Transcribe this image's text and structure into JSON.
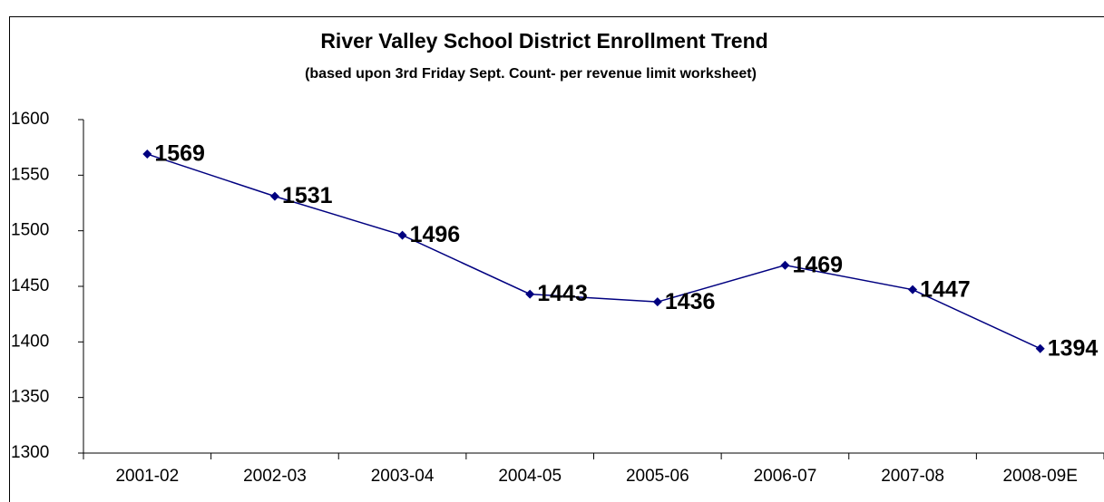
{
  "chart_data": {
    "type": "line",
    "title": "River Valley School District  Enrollment Trend",
    "subtitle": "(based upon 3rd Friday Sept. Count- per revenue limit worksheet)",
    "categories": [
      "2001-02",
      "2002-03",
      "2003-04",
      "2004-05",
      "2005-06",
      "2006-07",
      "2007-08",
      "2008-09E"
    ],
    "values": [
      1569,
      1531,
      1496,
      1443,
      1436,
      1469,
      1447,
      1394
    ],
    "color": "#000080",
    "ylim": [
      1300,
      1600
    ],
    "yticks": [
      1300,
      1350,
      1400,
      1450,
      1500,
      1550,
      1600
    ],
    "grid": false
  }
}
